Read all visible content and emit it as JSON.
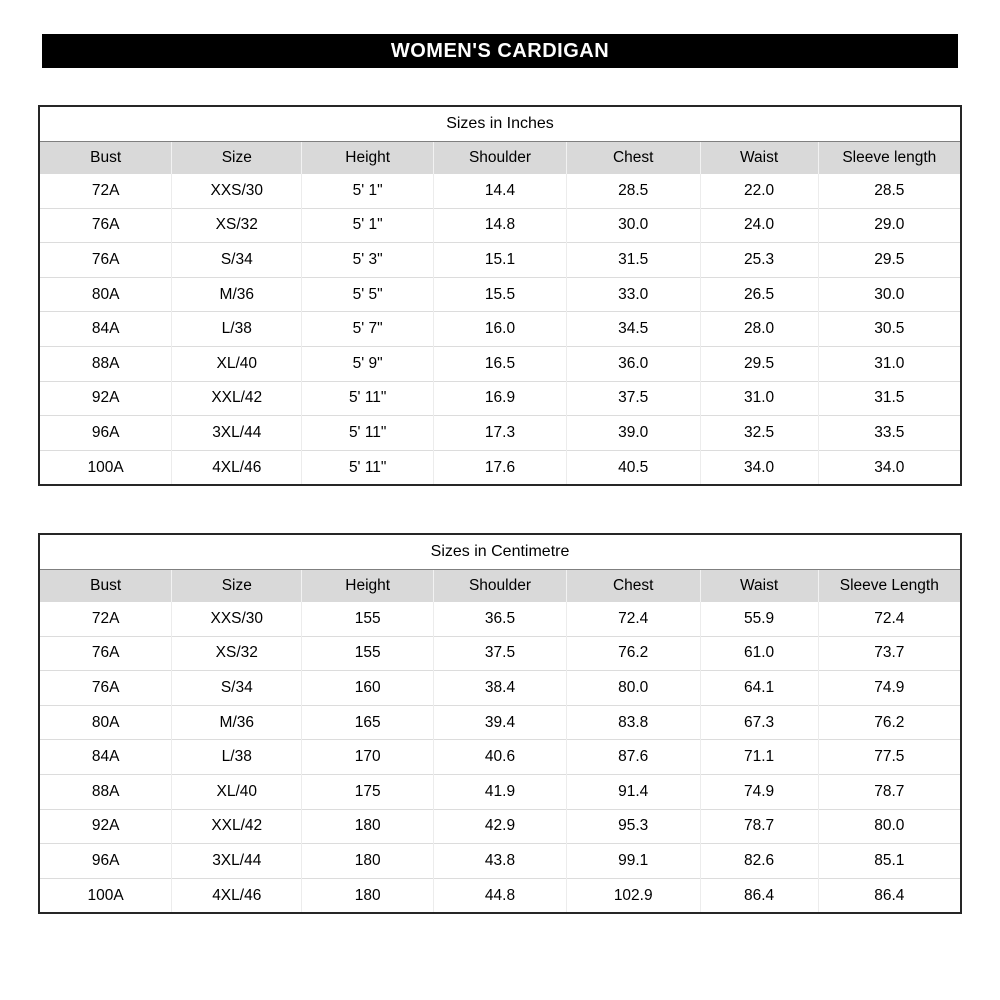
{
  "page_title": "WOMEN'S CARDIGAN",
  "colors": {
    "banner_background": "#000000",
    "banner_text": "#ffffff",
    "header_row_background": "#d9d9d9",
    "table_border": "#262626",
    "gridline": "#dcdcdc"
  },
  "tables": [
    {
      "caption": "Sizes in Inches",
      "columns": [
        "Bust",
        "Size",
        "Height",
        "Shoulder",
        "Chest",
        "Waist",
        "Sleeve length"
      ],
      "rows": [
        [
          "72A",
          "XXS/30",
          "5' 1\"",
          "14.4",
          "28.5",
          "22.0",
          "28.5"
        ],
        [
          "76A",
          "XS/32",
          "5' 1\"",
          "14.8",
          "30.0",
          "24.0",
          "29.0"
        ],
        [
          "76A",
          "S/34",
          "5' 3\"",
          "15.1",
          "31.5",
          "25.3",
          "29.5"
        ],
        [
          "80A",
          "M/36",
          "5' 5\"",
          "15.5",
          "33.0",
          "26.5",
          "30.0"
        ],
        [
          "84A",
          "L/38",
          "5' 7\"",
          "16.0",
          "34.5",
          "28.0",
          "30.5"
        ],
        [
          "88A",
          "XL/40",
          "5' 9\"",
          "16.5",
          "36.0",
          "29.5",
          "31.0"
        ],
        [
          "92A",
          "XXL/42",
          "5' 11\"",
          "16.9",
          "37.5",
          "31.0",
          "31.5"
        ],
        [
          "96A",
          "3XL/44",
          "5' 11\"",
          "17.3",
          "39.0",
          "32.5",
          "33.5"
        ],
        [
          "100A",
          "4XL/46",
          "5' 11\"",
          "17.6",
          "40.5",
          "34.0",
          "34.0"
        ]
      ]
    },
    {
      "caption": "Sizes in Centimetre",
      "columns": [
        "Bust",
        "Size",
        "Height",
        "Shoulder",
        "Chest",
        "Waist",
        "Sleeve Length"
      ],
      "rows": [
        [
          "72A",
          "XXS/30",
          "155",
          "36.5",
          "72.4",
          "55.9",
          "72.4"
        ],
        [
          "76A",
          "XS/32",
          "155",
          "37.5",
          "76.2",
          "61.0",
          "73.7"
        ],
        [
          "76A",
          "S/34",
          "160",
          "38.4",
          "80.0",
          "64.1",
          "74.9"
        ],
        [
          "80A",
          "M/36",
          "165",
          "39.4",
          "83.8",
          "67.3",
          "76.2"
        ],
        [
          "84A",
          "L/38",
          "170",
          "40.6",
          "87.6",
          "71.1",
          "77.5"
        ],
        [
          "88A",
          "XL/40",
          "175",
          "41.9",
          "91.4",
          "74.9",
          "78.7"
        ],
        [
          "92A",
          "XXL/42",
          "180",
          "42.9",
          "95.3",
          "78.7",
          "80.0"
        ],
        [
          "96A",
          "3XL/44",
          "180",
          "43.8",
          "99.1",
          "82.6",
          "85.1"
        ],
        [
          "100A",
          "4XL/46",
          "180",
          "44.8",
          "102.9",
          "86.4",
          "86.4"
        ]
      ]
    }
  ]
}
